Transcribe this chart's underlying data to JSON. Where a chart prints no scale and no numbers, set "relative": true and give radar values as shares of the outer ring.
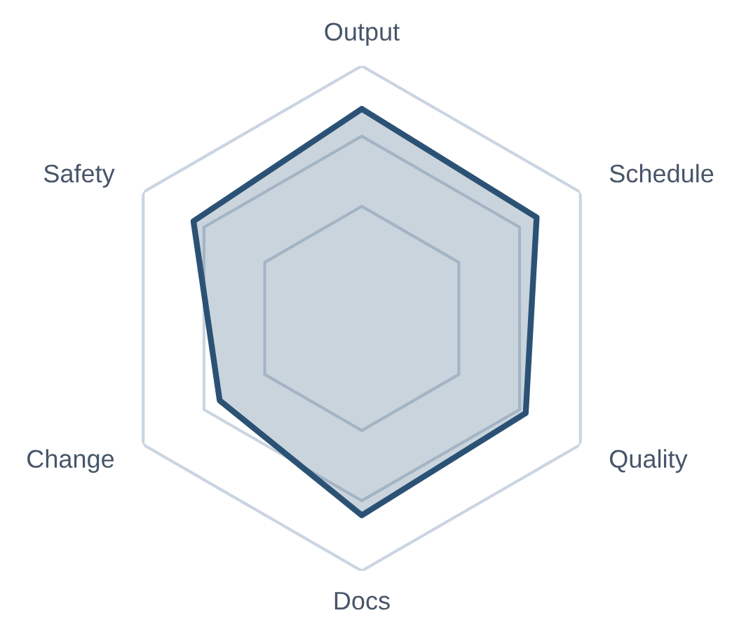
{
  "chart_data": {
    "type": "radar",
    "relative": true,
    "grid": true,
    "categories": [
      "Output",
      "Schedule",
      "Quality",
      "Docs",
      "Change",
      "Safety"
    ],
    "series": [
      {
        "color": "#2b5275",
        "values": [
          0.83,
          0.8,
          0.75,
          0.78,
          0.65,
          0.77
        ]
      }
    ]
  }
}
